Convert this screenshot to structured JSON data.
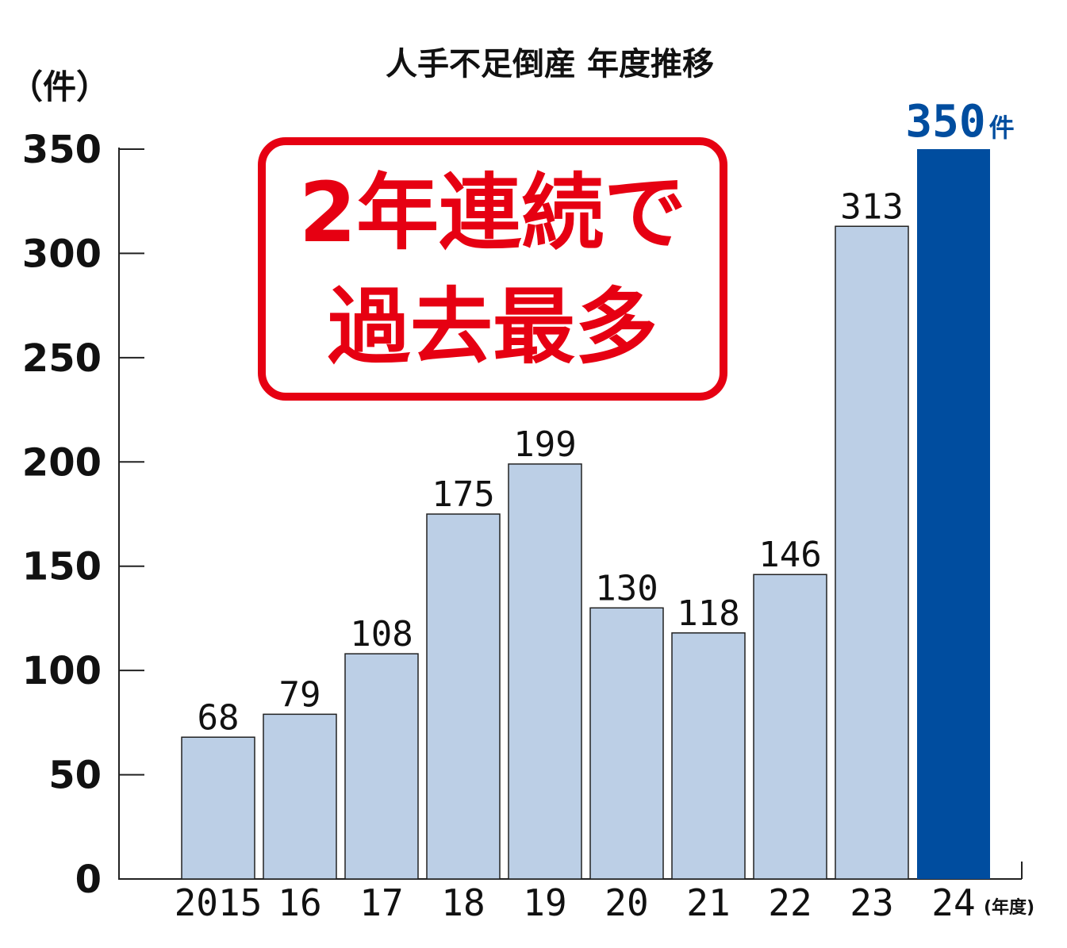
{
  "chart_data": {
    "type": "bar",
    "title": "人手不足倒産 年度推移",
    "ylabel": "（件）",
    "xlabel": "(年度)",
    "categories": [
      "2015",
      "16",
      "17",
      "18",
      "19",
      "20",
      "21",
      "22",
      "23",
      "24"
    ],
    "values": [
      68,
      79,
      108,
      175,
      199,
      130,
      118,
      146,
      313,
      350
    ],
    "ylim": [
      0,
      350
    ],
    "yticks": [
      0,
      50,
      100,
      150,
      200,
      250,
      300,
      350
    ],
    "grid": false,
    "highlight": {
      "category": "24",
      "label": "350",
      "suffix": "件"
    },
    "annotation": {
      "line1": "2年連続で",
      "line2": "過去最多"
    },
    "colors": {
      "bar": "#bccfe6",
      "bar_stroke": "#222222",
      "highlight_bar": "#004d9f",
      "highlight_text": "#004d9f",
      "callout": "#e60012",
      "axis": "#222222"
    }
  }
}
